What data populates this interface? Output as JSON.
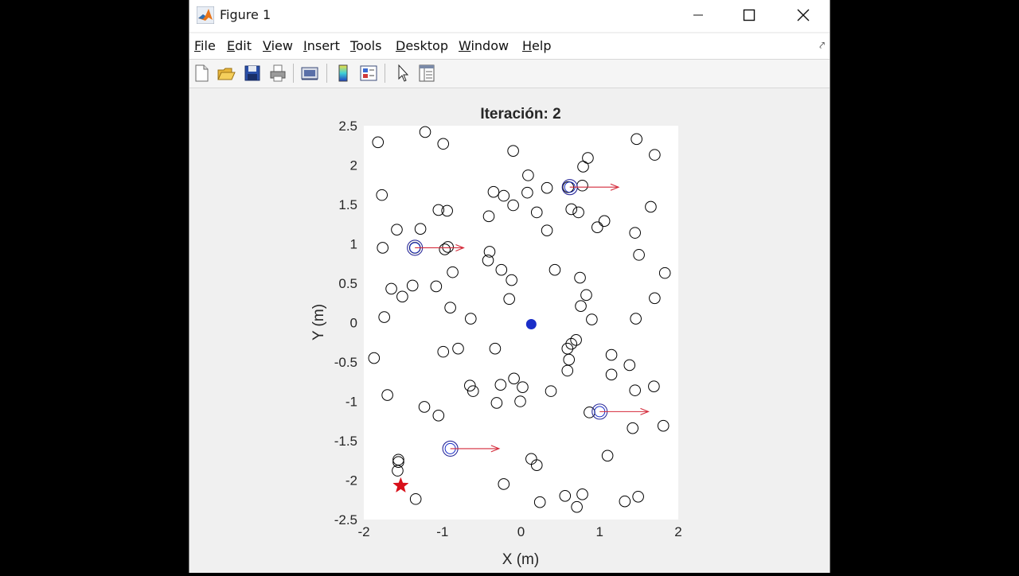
{
  "window": {
    "title": "Figure 1",
    "menus": [
      {
        "label": "File",
        "key": "F",
        "rest": "ile"
      },
      {
        "label": "Edit",
        "key": "E",
        "rest": "dit"
      },
      {
        "label": "View",
        "key": "V",
        "rest": "iew"
      },
      {
        "label": "Insert",
        "key": "I",
        "rest": "nsert"
      },
      {
        "label": "Tools",
        "key": "T",
        "rest": "ools"
      },
      {
        "label": "Desktop",
        "key": "D",
        "rest": "esktop"
      },
      {
        "label": "Window",
        "key": "W",
        "rest": "indow"
      },
      {
        "label": "Help",
        "key": "H",
        "rest": "elp"
      }
    ],
    "toolbar_icons": [
      "new-figure-icon",
      "open-file-icon",
      "save-icon",
      "print-icon",
      "link-plot-icon",
      "insert-colorbar-icon",
      "insert-legend-icon",
      "pointer-icon",
      "property-inspector-icon"
    ]
  },
  "chart_data": {
    "type": "scatter",
    "title": "Iteración: 2",
    "xlabel": "X (m)",
    "ylabel": "Y (m)",
    "xlim": [
      -2,
      2
    ],
    "ylim": [
      -2.5,
      2.5
    ],
    "xticks": [
      "-2",
      "-1",
      "0",
      "1",
      "2"
    ],
    "yticks": [
      "-2.5",
      "-2",
      "-1.5",
      "-1",
      "-0.5",
      "0",
      "0.5",
      "1",
      "1.5",
      "2",
      "2.5"
    ],
    "colors": {
      "obstacle": "#000000",
      "agent": "#1a2ec8",
      "ring": "#2a2a9a",
      "arrow": "#d42a3a",
      "goal": "#d8101a"
    },
    "obstacles": [
      [
        -1.82,
        2.29
      ],
      [
        -1.22,
        2.42
      ],
      [
        -0.99,
        2.27
      ],
      [
        -0.1,
        2.18
      ],
      [
        1.47,
        2.33
      ],
      [
        1.7,
        2.13
      ],
      [
        0.85,
        2.09
      ],
      [
        0.79,
        1.98
      ],
      [
        0.09,
        1.87
      ],
      [
        -1.77,
        1.62
      ],
      [
        -0.35,
        1.66
      ],
      [
        -0.22,
        1.61
      ],
      [
        0.33,
        1.71
      ],
      [
        0.08,
        1.65
      ],
      [
        0.78,
        1.74
      ],
      [
        0.6,
        1.72
      ],
      [
        -1.05,
        1.43
      ],
      [
        -0.94,
        1.42
      ],
      [
        -0.1,
        1.49
      ],
      [
        0.2,
        1.4
      ],
      [
        0.64,
        1.44
      ],
      [
        0.73,
        1.4
      ],
      [
        1.65,
        1.47
      ],
      [
        -0.41,
        1.35
      ],
      [
        1.06,
        1.29
      ],
      [
        0.97,
        1.21
      ],
      [
        -1.58,
        1.18
      ],
      [
        -1.28,
        1.19
      ],
      [
        0.33,
        1.17
      ],
      [
        1.45,
        1.14
      ],
      [
        -1.76,
        0.95
      ],
      [
        -0.93,
        0.96
      ],
      [
        -0.97,
        0.93
      ],
      [
        -0.4,
        0.9
      ],
      [
        -1.35,
        0.95
      ],
      [
        1.5,
        0.86
      ],
      [
        -0.42,
        0.79
      ],
      [
        -0.25,
        0.67
      ],
      [
        0.43,
        0.67
      ],
      [
        -0.87,
        0.64
      ],
      [
        1.83,
        0.63
      ],
      [
        -0.12,
        0.54
      ],
      [
        0.75,
        0.57
      ],
      [
        -1.65,
        0.43
      ],
      [
        -1.38,
        0.47
      ],
      [
        -1.08,
        0.46
      ],
      [
        -1.51,
        0.33
      ],
      [
        0.83,
        0.35
      ],
      [
        1.7,
        0.31
      ],
      [
        -0.15,
        0.3
      ],
      [
        -0.9,
        0.19
      ],
      [
        0.76,
        0.21
      ],
      [
        -1.74,
        0.07
      ],
      [
        -0.64,
        0.05
      ],
      [
        0.9,
        0.04
      ],
      [
        1.46,
        0.05
      ],
      [
        0.7,
        -0.22
      ],
      [
        0.64,
        -0.27
      ],
      [
        0.59,
        -0.33
      ],
      [
        -0.33,
        -0.33
      ],
      [
        -0.99,
        -0.37
      ],
      [
        -0.8,
        -0.33
      ],
      [
        1.15,
        -0.41
      ],
      [
        0.61,
        -0.47
      ],
      [
        -1.87,
        -0.45
      ],
      [
        1.38,
        -0.54
      ],
      [
        0.59,
        -0.61
      ],
      [
        1.15,
        -0.66
      ],
      [
        -0.09,
        -0.71
      ],
      [
        -0.65,
        -0.8
      ],
      [
        -0.26,
        -0.79
      ],
      [
        0.02,
        -0.82
      ],
      [
        1.69,
        -0.81
      ],
      [
        -0.61,
        -0.87
      ],
      [
        0.38,
        -0.87
      ],
      [
        1.45,
        -0.86
      ],
      [
        -1.7,
        -0.92
      ],
      [
        -0.31,
        -1.02
      ],
      [
        -0.01,
        -1.0
      ],
      [
        -1.23,
        -1.07
      ],
      [
        -1.05,
        -1.18
      ],
      [
        0.87,
        -1.14
      ],
      [
        1.81,
        -1.31
      ],
      [
        1.42,
        -1.34
      ],
      [
        1.1,
        -1.69
      ],
      [
        0.13,
        -1.73
      ],
      [
        0.2,
        -1.81
      ],
      [
        -1.56,
        -1.74
      ],
      [
        -1.56,
        -1.77
      ],
      [
        -1.57,
        -1.88
      ],
      [
        -0.22,
        -2.05
      ],
      [
        0.56,
        -2.2
      ],
      [
        0.78,
        -2.18
      ],
      [
        1.32,
        -2.27
      ],
      [
        1.49,
        -2.21
      ],
      [
        -1.34,
        -2.24
      ],
      [
        0.24,
        -2.28
      ],
      [
        0.71,
        -2.34
      ]
    ],
    "agents": [
      {
        "x": -1.35,
        "y": 0.95,
        "dx": 0.62,
        "dy": 0.0
      },
      {
        "x": 0.62,
        "y": 1.72,
        "dx": 0.62,
        "dy": 0.0
      },
      {
        "x": 1.0,
        "y": -1.13,
        "dx": 0.62,
        "dy": 0.0
      },
      {
        "x": -0.9,
        "y": -1.6,
        "dx": 0.62,
        "dy": 0.0
      }
    ],
    "leader": {
      "x": 0.13,
      "y": -0.02
    },
    "goal": {
      "x": -1.53,
      "y": -2.07
    }
  }
}
